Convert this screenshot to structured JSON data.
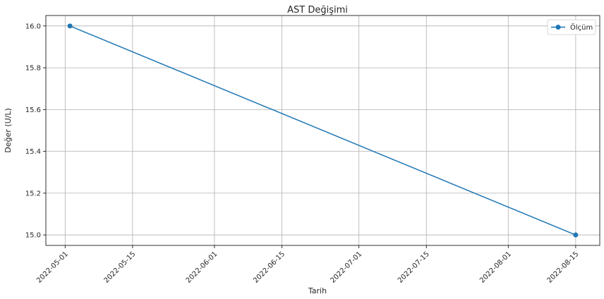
{
  "chart_data": {
    "type": "line",
    "title": "AST Değişimi",
    "xlabel": "Tarih",
    "ylabel": "Değer (U/L)",
    "x": [
      "2022-05-02",
      "2022-08-15"
    ],
    "series": [
      {
        "name": "Ölçüm",
        "values": [
          16.0,
          15.0
        ],
        "color": "#1f77b4",
        "marker": "circle"
      }
    ],
    "x_ticks": [
      "2022-05-01",
      "2022-05-15",
      "2022-06-01",
      "2022-06-15",
      "2022-07-01",
      "2022-07-15",
      "2022-08-01",
      "2022-08-15"
    ],
    "y_ticks": [
      "15.0",
      "15.2",
      "15.4",
      "15.6",
      "15.8",
      "16.0"
    ],
    "xlim": [
      "2022-04-27",
      "2022-08-20"
    ],
    "ylim": [
      14.95,
      16.05
    ],
    "grid": true,
    "legend_position": "top-right"
  }
}
